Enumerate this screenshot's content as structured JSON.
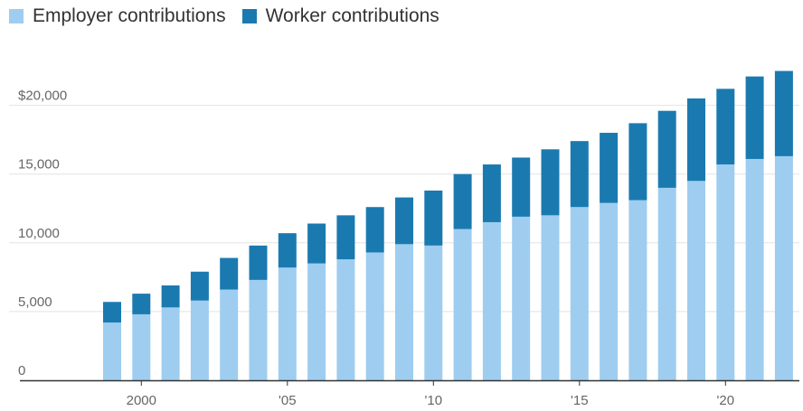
{
  "chart_data": {
    "type": "bar",
    "stacked": true,
    "title": "",
    "xlabel": "",
    "ylabel": "",
    "x": [
      1999,
      2000,
      2001,
      2002,
      2003,
      2004,
      2005,
      2006,
      2007,
      2008,
      2009,
      2010,
      2011,
      2012,
      2013,
      2014,
      2015,
      2016,
      2017,
      2018,
      2019,
      2020,
      2021,
      2022
    ],
    "series": [
      {
        "name": "Employer contributions",
        "color": "#9ecdf0",
        "values": [
          4200,
          4800,
          5300,
          5800,
          6600,
          7300,
          8200,
          8500,
          8800,
          9300,
          9900,
          9800,
          11000,
          11500,
          11900,
          12000,
          12600,
          12900,
          13100,
          14000,
          14500,
          15700,
          16100,
          16300
        ]
      },
      {
        "name": "Worker contributions",
        "color": "#1a7ab0",
        "values": [
          1500,
          1500,
          1600,
          2100,
          2300,
          2500,
          2500,
          2900,
          3200,
          3300,
          3400,
          4000,
          4000,
          4200,
          4300,
          4800,
          4800,
          5100,
          5600,
          5600,
          6000,
          5500,
          6000,
          6200
        ]
      }
    ],
    "ylim": [
      0,
      23000
    ],
    "yticks": [
      0,
      5000,
      10000,
      15000,
      20000
    ],
    "ytick_labels": [
      "0",
      "5,000",
      "10,000",
      "15,000",
      "$20,000"
    ],
    "xticks": [
      2000,
      2005,
      2010,
      2015,
      2020
    ],
    "xtick_labels": [
      "2000",
      "'05",
      "'10",
      "'15",
      "'20"
    ],
    "grid": "horizontal",
    "legend_position": "top-left",
    "axis_color": "#333333",
    "grid_color": "#e3e3e3"
  }
}
